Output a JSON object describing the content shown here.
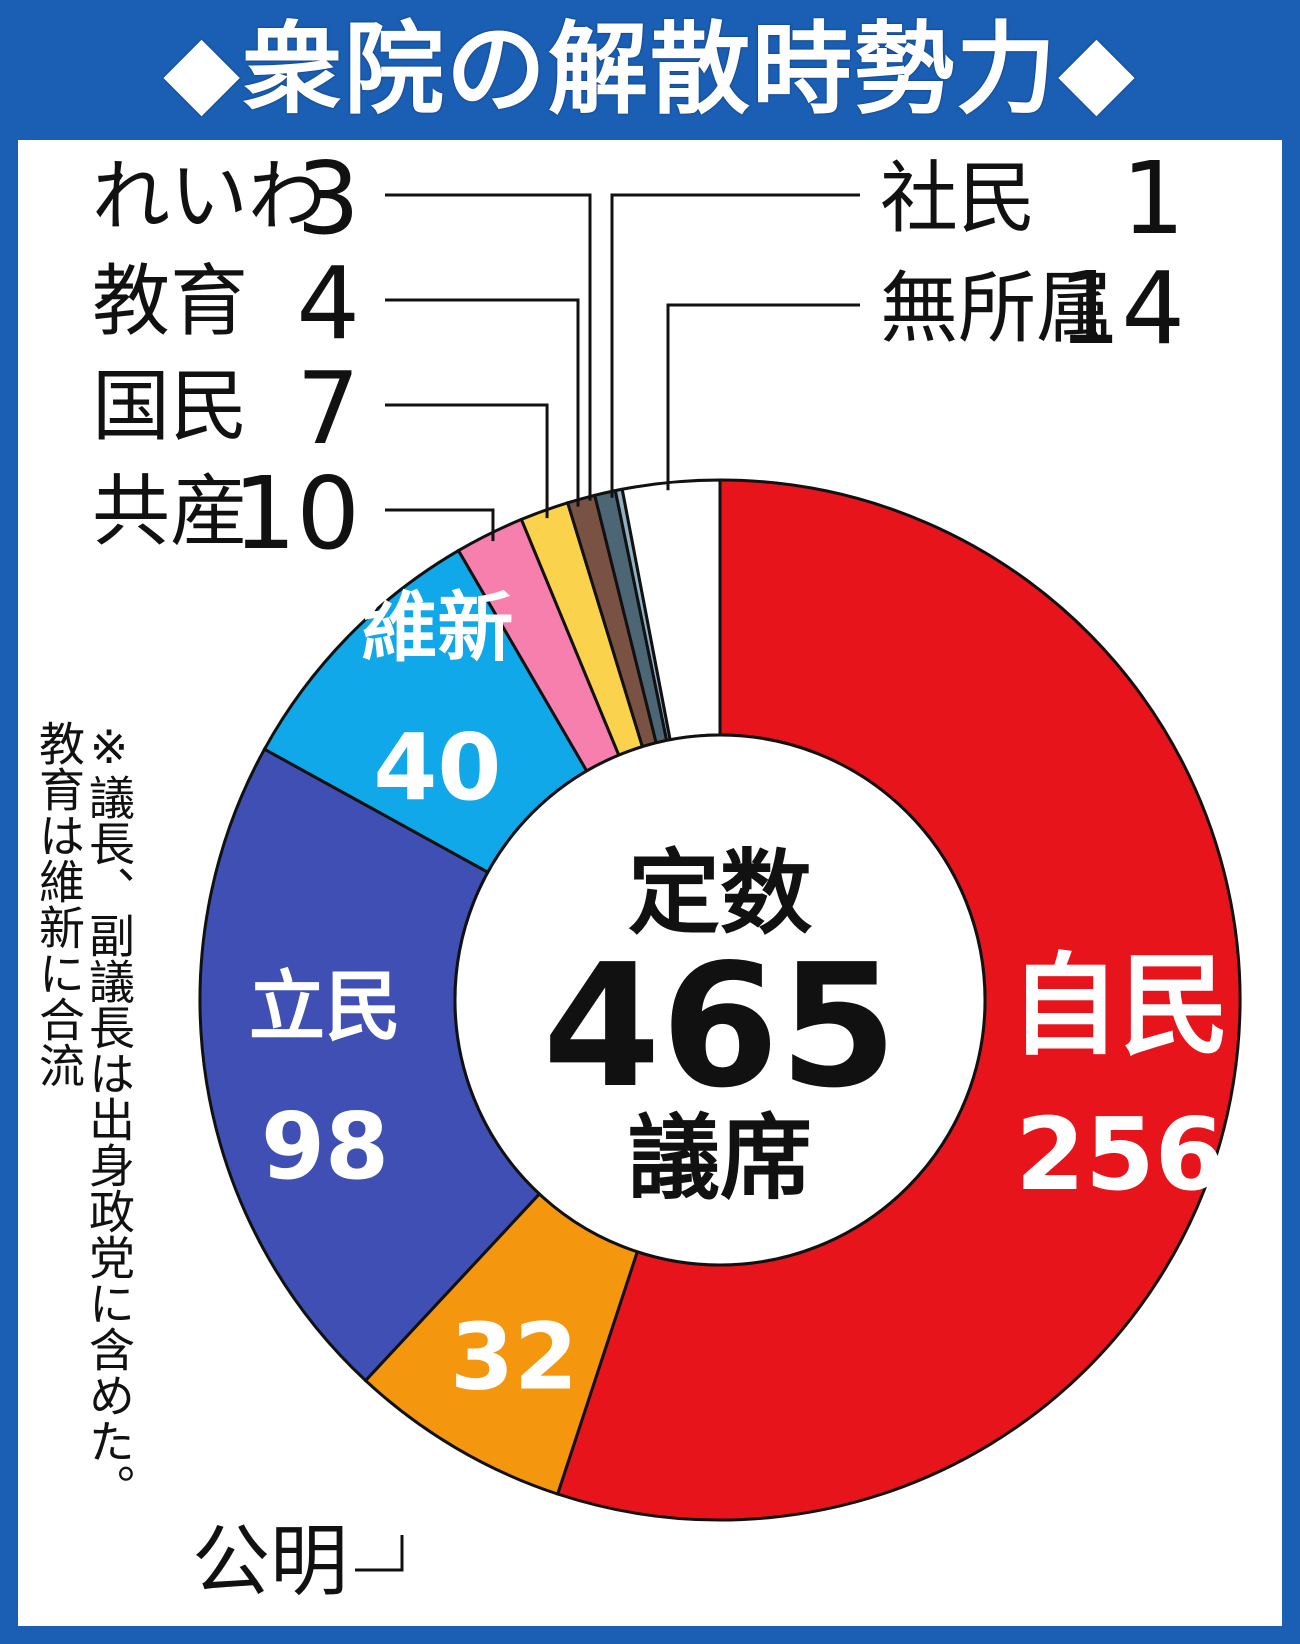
{
  "title": "◆衆院の解散時勢力◆",
  "center": {
    "line1": "定数",
    "total": "465",
    "line3": "議席"
  },
  "note": {
    "line1": "※議長、副議長は出身政党に含めた。",
    "line2": "教育は維新に合流"
  },
  "chart_data": {
    "type": "pie",
    "style": "donut",
    "total": 465,
    "slices": [
      {
        "name": "自民",
        "value": 256,
        "color": "#e8141b"
      },
      {
        "name": "公明",
        "value": 32,
        "color": "#f5960f"
      },
      {
        "name": "立民",
        "value": 98,
        "color": "#3f4fb3"
      },
      {
        "name": "維新",
        "value": 40,
        "color": "#10a8e8"
      },
      {
        "name": "共産",
        "value": 10,
        "color": "#f77fae"
      },
      {
        "name": "国民",
        "value": 7,
        "color": "#fbd24b"
      },
      {
        "name": "教育",
        "value": 4,
        "color": "#7a5244"
      },
      {
        "name": "れいわ",
        "value": 3,
        "color": "#4d6675"
      },
      {
        "name": "社民",
        "value": 1,
        "color": "#8fb0c2"
      },
      {
        "name": "無所属",
        "value": 14,
        "color": "#ffffff"
      }
    ]
  }
}
